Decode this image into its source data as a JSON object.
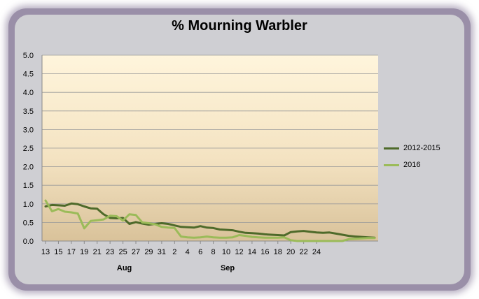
{
  "chart_data": {
    "type": "line",
    "title": "% Mourning Warbler",
    "ylim": [
      0,
      5
    ],
    "yticks": [
      "0.0",
      "0.5",
      "1.0",
      "1.5",
      "2.0",
      "2.5",
      "3.0",
      "3.5",
      "4.0",
      "4.5",
      "5.0"
    ],
    "xtick_labels": [
      "13",
      "15",
      "17",
      "19",
      "21",
      "23",
      "25",
      "27",
      "29",
      "31",
      "2",
      "4",
      "6",
      "8",
      "10",
      "12",
      "14",
      "16",
      "18",
      "20",
      "22",
      "24"
    ],
    "month_labels": [
      {
        "label": "Aug",
        "at_index": 12
      },
      {
        "label": "Sep",
        "at_index": 28
      }
    ],
    "grid": "horizontal",
    "legend_position": "right",
    "series": [
      {
        "name": "2012-2015",
        "color": "#4e6a2a",
        "values": [
          0.93,
          0.97,
          0.96,
          0.95,
          1.01,
          0.99,
          0.93,
          0.88,
          0.87,
          0.72,
          0.62,
          0.61,
          0.62,
          0.46,
          0.51,
          0.47,
          0.44,
          0.46,
          0.48,
          0.46,
          0.42,
          0.38,
          0.37,
          0.36,
          0.4,
          0.36,
          0.35,
          0.31,
          0.3,
          0.29,
          0.25,
          0.22,
          0.21,
          0.2,
          0.18,
          0.17,
          0.16,
          0.15,
          0.24,
          0.26,
          0.27,
          0.25,
          0.23,
          0.22,
          0.23,
          0.2,
          0.17,
          0.14,
          0.12,
          0.11,
          0.1,
          0.09
        ]
      },
      {
        "name": "2016",
        "color": "#9bbb59",
        "values": [
          1.09,
          0.8,
          0.86,
          0.79,
          0.77,
          0.74,
          0.34,
          0.54,
          0.56,
          0.58,
          0.68,
          0.67,
          0.55,
          0.72,
          0.7,
          0.5,
          0.48,
          0.45,
          0.38,
          0.36,
          0.35,
          0.12,
          0.1,
          0.09,
          0.1,
          0.12,
          0.1,
          0.09,
          0.09,
          0.1,
          0.16,
          0.14,
          0.11,
          0.1,
          0.09,
          0.09,
          0.09,
          0.1,
          0.02,
          0.0,
          0.0,
          0.0,
          0.0,
          0.0,
          0.0,
          0.0,
          0.0,
          0.05,
          0.06,
          0.07,
          0.08,
          0.08
        ]
      }
    ]
  }
}
